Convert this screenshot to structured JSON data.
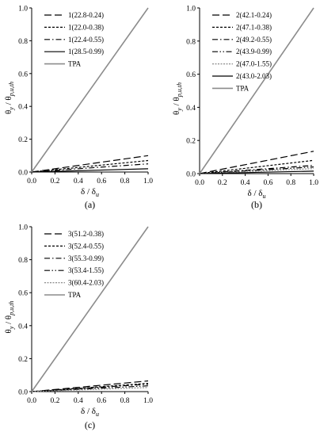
{
  "chart_data": [
    {
      "type": "line",
      "panel_label": "(a)",
      "xlabel": "δ / δu",
      "ylabel": "θy / θp,u,th",
      "xlim": [
        0,
        1
      ],
      "ylim": [
        0,
        1
      ],
      "xticks": [
        "0.0",
        "0.2",
        "0.4",
        "0.6",
        "0.8",
        "1.0"
      ],
      "yticks": [
        "0.0",
        "0.2",
        "0.4",
        "0.6",
        "0.8",
        "1.0"
      ],
      "legend_position": "top-left",
      "series": [
        {
          "name": "1(22.8-0.24)",
          "style": "long-dash",
          "color": "#000000",
          "x": [
            0,
            1
          ],
          "y": [
            0,
            0.1
          ]
        },
        {
          "name": "1(22.0-0.38)",
          "style": "short-dash",
          "color": "#000000",
          "x": [
            0,
            1
          ],
          "y": [
            0,
            0.07
          ]
        },
        {
          "name": "1(22.4-0.55)",
          "style": "dash-dot",
          "color": "#000000",
          "x": [
            0,
            1
          ],
          "y": [
            0,
            0.05
          ]
        },
        {
          "name": "1(28.5-0.99)",
          "style": "solid",
          "color": "#000000",
          "x": [
            0,
            1
          ],
          "y": [
            0,
            0.02
          ]
        },
        {
          "name": "TPA",
          "style": "solid",
          "color": "#8c8c8c",
          "x": [
            0,
            1
          ],
          "y": [
            0,
            1.0
          ]
        }
      ]
    },
    {
      "type": "line",
      "panel_label": "(b)",
      "xlabel": "δ / δu",
      "ylabel": "θy / θp,u,th",
      "xlim": [
        0,
        1
      ],
      "ylim": [
        0,
        1
      ],
      "xticks": [
        "0.0",
        "0.2",
        "0.4",
        "0.6",
        "0.8",
        "1.0"
      ],
      "yticks": [
        "0.0",
        "0.2",
        "0.4",
        "0.6",
        "0.8",
        "1.0"
      ],
      "legend_position": "top-left",
      "series": [
        {
          "name": "2(42.1-0.24)",
          "style": "long-dash",
          "color": "#000000",
          "x": [
            0,
            1
          ],
          "y": [
            0,
            0.135
          ]
        },
        {
          "name": "2(47.1-0.38)",
          "style": "short-dash",
          "color": "#000000",
          "x": [
            0,
            1
          ],
          "y": [
            0,
            0.08
          ]
        },
        {
          "name": "2(49.2-0.55)",
          "style": "dash-dot",
          "color": "#000000",
          "x": [
            0,
            1
          ],
          "y": [
            0,
            0.05
          ]
        },
        {
          "name": "2(43.9-0.99)",
          "style": "dash-dot-dot",
          "color": "#000000",
          "x": [
            0,
            1
          ],
          "y": [
            0,
            0.04
          ]
        },
        {
          "name": "2(47.0-1.55)",
          "style": "fine-dash",
          "color": "#8c8c8c",
          "x": [
            0,
            1
          ],
          "y": [
            0,
            0.03
          ]
        },
        {
          "name": "2(43.0-2.03)",
          "style": "solid",
          "color": "#000000",
          "x": [
            0,
            1
          ],
          "y": [
            0,
            0.015
          ]
        },
        {
          "name": "TPA",
          "style": "solid",
          "color": "#8c8c8c",
          "x": [
            0,
            1
          ],
          "y": [
            0,
            1.0
          ]
        }
      ]
    },
    {
      "type": "line",
      "panel_label": "(c)",
      "xlabel": "δ / δu",
      "ylabel": "θy / θp,u,th",
      "xlim": [
        0,
        1
      ],
      "ylim": [
        0,
        1
      ],
      "xticks": [
        "0.0",
        "0.2",
        "0.4",
        "0.6",
        "0.8",
        "1.0"
      ],
      "yticks": [
        "0.0",
        "0.2",
        "0.4",
        "0.6",
        "0.8",
        "1.0"
      ],
      "legend_position": "top-left",
      "series": [
        {
          "name": "3(51.2-0.38)",
          "style": "long-dash",
          "color": "#000000",
          "x": [
            0,
            1
          ],
          "y": [
            0,
            0.065
          ]
        },
        {
          "name": "3(52.4-0.55)",
          "style": "short-dash",
          "color": "#000000",
          "x": [
            0,
            1
          ],
          "y": [
            0,
            0.05
          ]
        },
        {
          "name": "3(55.3-0.99)",
          "style": "dash-dot",
          "color": "#000000",
          "x": [
            0,
            1
          ],
          "y": [
            0,
            0.045
          ]
        },
        {
          "name": "3(53.4-1.55)",
          "style": "dash-dot-dot",
          "color": "#000000",
          "x": [
            0,
            1
          ],
          "y": [
            0,
            0.035
          ]
        },
        {
          "name": "3(60.4-2.03)",
          "style": "fine-dash",
          "color": "#8c8c8c",
          "x": [
            0,
            1
          ],
          "y": [
            0,
            0.025
          ]
        },
        {
          "name": "TPA",
          "style": "solid",
          "color": "#8c8c8c",
          "x": [
            0,
            1
          ],
          "y": [
            0,
            1.0
          ]
        }
      ]
    }
  ]
}
